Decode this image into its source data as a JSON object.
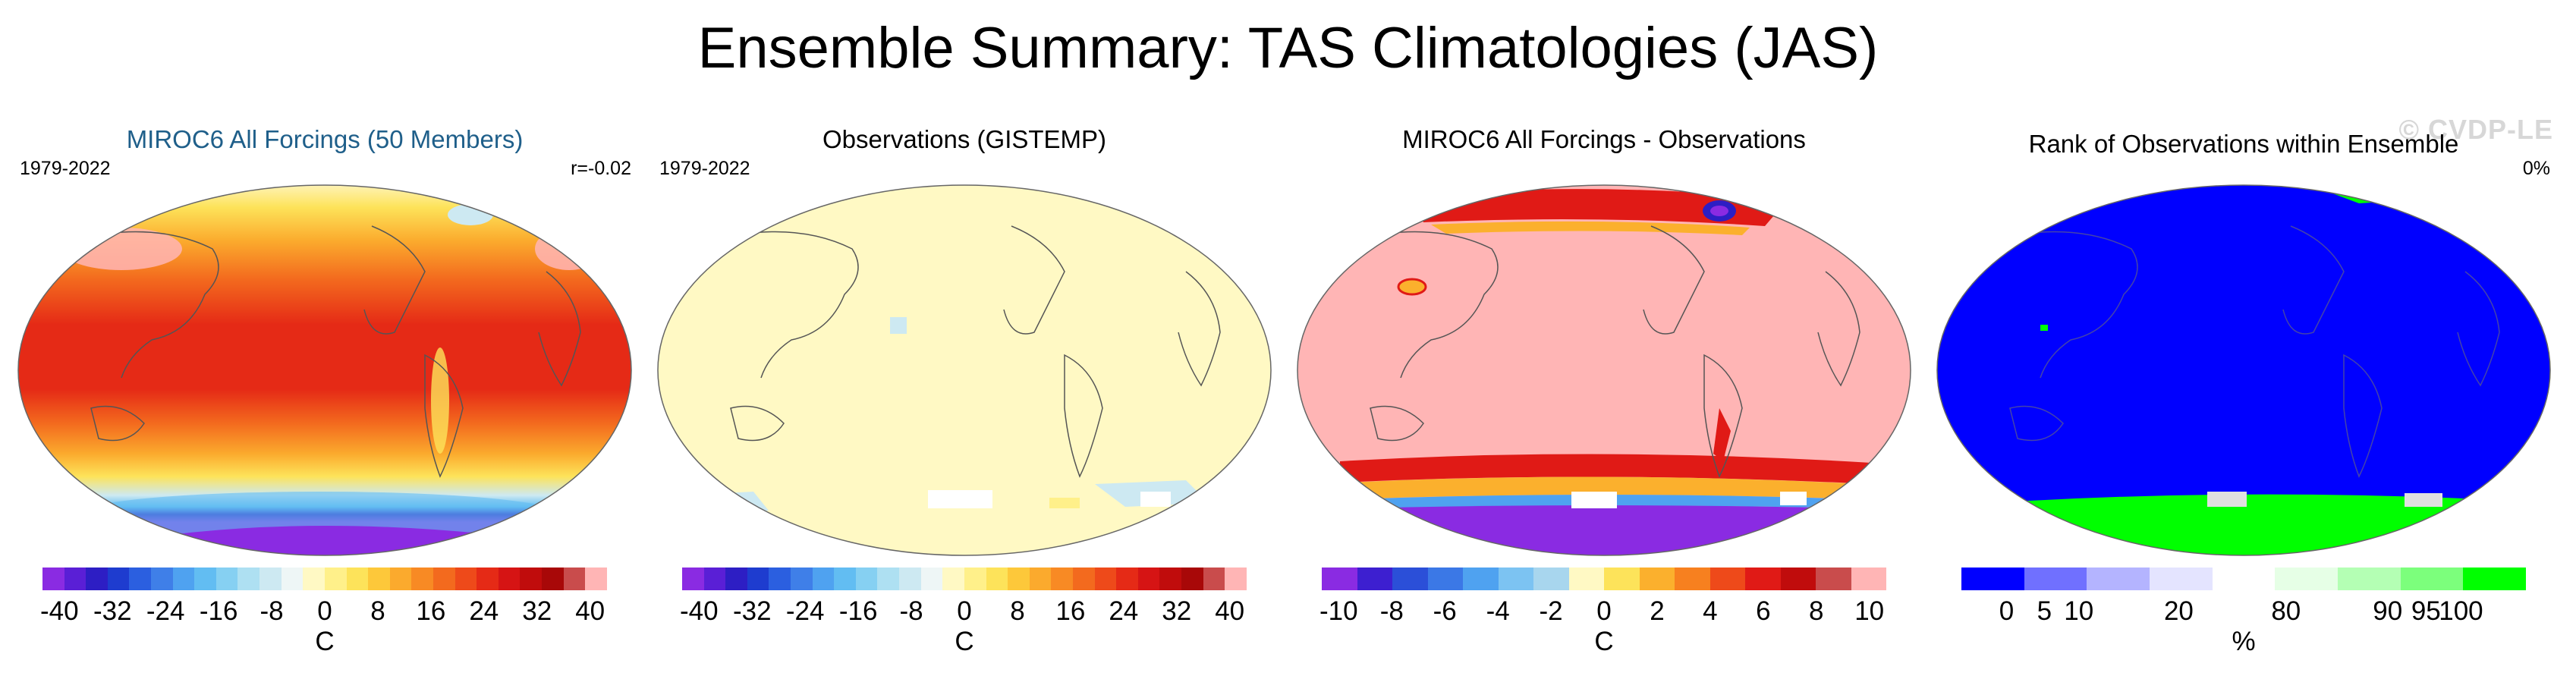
{
  "title": "Ensemble Summary: TAS Climatologies (JAS)",
  "watermark": "© CVDP-LE",
  "panels": [
    {
      "title": "MIROC6 All Forcings (50 Members)",
      "left_label": "1979-2022",
      "right_label": "r=-0.02",
      "colorbar": {
        "colors": [
          "#8a2be2",
          "#5a1fd6",
          "#2d1ec4",
          "#1e3ccf",
          "#2b5fe0",
          "#3f7fe8",
          "#4fa2f0",
          "#62bdf2",
          "#86d0f2",
          "#aee0f2",
          "#cde9f2",
          "#eef6f6",
          "#fff9c4",
          "#fff08a",
          "#fde35a",
          "#fdc83a",
          "#fbaa2d",
          "#f88a24",
          "#f36a1e",
          "#ee4a1a",
          "#e52a16",
          "#d61414",
          "#c00c0c",
          "#a80808",
          "#c94c4c",
          "#ffb5b5"
        ],
        "ticks": [
          "-40",
          "-32",
          "-24",
          "-16",
          "-8",
          "0",
          "8",
          "16",
          "24",
          "32",
          "40"
        ],
        "unit": "C"
      }
    },
    {
      "title": "Observations (GISTEMP)",
      "left_label": "1979-2022",
      "right_label": "",
      "colorbar": {
        "colors": [
          "#8a2be2",
          "#5a1fd6",
          "#2d1ec4",
          "#1e3ccf",
          "#2b5fe0",
          "#3f7fe8",
          "#4fa2f0",
          "#62bdf2",
          "#86d0f2",
          "#aee0f2",
          "#cde9f2",
          "#eef6f6",
          "#fff9c4",
          "#fff08a",
          "#fde35a",
          "#fdc83a",
          "#fbaa2d",
          "#f88a24",
          "#f36a1e",
          "#ee4a1a",
          "#e52a16",
          "#d61414",
          "#c00c0c",
          "#a80808",
          "#c94c4c",
          "#ffb5b5"
        ],
        "ticks": [
          "-40",
          "-32",
          "-24",
          "-16",
          "-8",
          "0",
          "8",
          "16",
          "24",
          "32",
          "40"
        ],
        "unit": "C"
      }
    },
    {
      "title": "MIROC6 All Forcings - Observations",
      "left_label": "",
      "right_label": "",
      "colorbar": {
        "colors": [
          "#8a2be2",
          "#3d1fd0",
          "#2b4fd8",
          "#3b78e6",
          "#4fa2f0",
          "#7cc3f2",
          "#a8d6ee",
          "#fff9c4",
          "#fde35a",
          "#fbb02d",
          "#f7801f",
          "#ee4a1a",
          "#e01a16",
          "#c00c0c",
          "#c94c4c",
          "#ffb5b5"
        ],
        "ticks": [
          "-10",
          "-8",
          "-6",
          "-4",
          "-2",
          "0",
          "2",
          "4",
          "6",
          "8",
          "10"
        ],
        "unit": "C"
      }
    },
    {
      "title": "Rank of Observations within Ensemble",
      "left_label": "",
      "right_label": "0%",
      "colorbar": {
        "colors": [
          "#0000ff",
          "#7070ff",
          "#b4b4ff",
          "#e4e4ff",
          "#ffffff",
          "#e6ffe6",
          "#b4ffb4",
          "#7cff7c",
          "#00ff00"
        ],
        "ticks": [
          "0",
          "5",
          "10",
          "20",
          "80",
          "90",
          "95",
          "100"
        ],
        "unit": "%"
      }
    }
  ]
}
